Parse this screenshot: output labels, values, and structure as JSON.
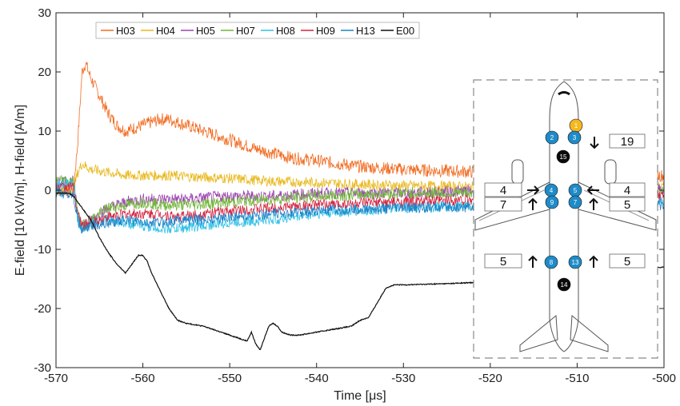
{
  "chart_data": {
    "type": "line",
    "title": "",
    "xlabel": "Time [μs]",
    "ylabel": "E-field [10 kV/m], H-field [A/m]",
    "xlim": [
      -570,
      -500
    ],
    "ylim": [
      -30,
      30
    ],
    "xticks": [
      -570,
      -560,
      -550,
      -540,
      -530,
      -520,
      -510,
      -500
    ],
    "yticks": [
      -30,
      -20,
      -10,
      0,
      10,
      20,
      30
    ],
    "grid": false,
    "legend_position": "top-left-horizontal",
    "series": [
      {
        "name": "H03",
        "color": "#f26b21",
        "noise": 1.1,
        "points": [
          [
            -570,
            0
          ],
          [
            -568,
            0
          ],
          [
            -567.5,
            8
          ],
          [
            -567,
            20
          ],
          [
            -566.6,
            21.5
          ],
          [
            -566,
            19
          ],
          [
            -565,
            16
          ],
          [
            -564,
            13
          ],
          [
            -563,
            11
          ],
          [
            -562,
            10
          ],
          [
            -561,
            10.5
          ],
          [
            -560,
            11
          ],
          [
            -559,
            11.5
          ],
          [
            -558,
            12
          ],
          [
            -557,
            12
          ],
          [
            -556,
            11.5
          ],
          [
            -555,
            11
          ],
          [
            -553,
            10
          ],
          [
            -550,
            8.5
          ],
          [
            -547,
            7
          ],
          [
            -543,
            5.5
          ],
          [
            -540,
            5
          ],
          [
            -535,
            4
          ],
          [
            -530,
            3.5
          ],
          [
            -520,
            3
          ],
          [
            -510,
            2.8
          ],
          [
            -500,
            2.5
          ]
        ]
      },
      {
        "name": "H04",
        "color": "#e8b81c",
        "noise": 0.9,
        "points": [
          [
            -570,
            0
          ],
          [
            -568,
            0
          ],
          [
            -567.5,
            3
          ],
          [
            -567,
            4.5
          ],
          [
            -566,
            3.5
          ],
          [
            -564,
            3
          ],
          [
            -562,
            2.5
          ],
          [
            -560,
            2.5
          ],
          [
            -557,
            2.5
          ],
          [
            -555,
            2.3
          ],
          [
            -550,
            2
          ],
          [
            -545,
            1.5
          ],
          [
            -540,
            1.3
          ],
          [
            -535,
            1
          ],
          [
            -530,
            0.8
          ],
          [
            -520,
            0.5
          ],
          [
            -500,
            0.5
          ]
        ]
      },
      {
        "name": "H05",
        "color": "#9b44b0",
        "noise": 1.0,
        "points": [
          [
            -570,
            1.5
          ],
          [
            -568,
            1.5
          ],
          [
            -567.5,
            -4
          ],
          [
            -567,
            -6
          ],
          [
            -566,
            -5
          ],
          [
            -564,
            -3
          ],
          [
            -562,
            -2
          ],
          [
            -560,
            -1.5
          ],
          [
            -558,
            -1.5
          ],
          [
            -555,
            -1.5
          ],
          [
            -550,
            -1
          ],
          [
            -545,
            -1
          ],
          [
            -540,
            -0.5
          ],
          [
            -530,
            -0.5
          ],
          [
            -520,
            0
          ],
          [
            -500,
            0
          ]
        ]
      },
      {
        "name": "H07",
        "color": "#73b53a",
        "noise": 1.0,
        "points": [
          [
            -570,
            1.5
          ],
          [
            -568,
            1.5
          ],
          [
            -567.5,
            -4
          ],
          [
            -567,
            -6
          ],
          [
            -566,
            -5
          ],
          [
            -564,
            -3
          ],
          [
            -562,
            -2.5
          ],
          [
            -560,
            -2
          ],
          [
            -558,
            -2.5
          ],
          [
            -555,
            -2.5
          ],
          [
            -550,
            -2
          ],
          [
            -545,
            -1.5
          ],
          [
            -540,
            -1
          ],
          [
            -530,
            -0.5
          ],
          [
            -520,
            -0.5
          ],
          [
            -500,
            0
          ]
        ]
      },
      {
        "name": "H08",
        "color": "#2fc0e6",
        "noise": 0.9,
        "points": [
          [
            -570,
            1
          ],
          [
            -568,
            1
          ],
          [
            -567.5,
            -5
          ],
          [
            -567,
            -6.5
          ],
          [
            -566,
            -5.5
          ],
          [
            -564,
            -5
          ],
          [
            -562,
            -5.5
          ],
          [
            -560,
            -6
          ],
          [
            -558,
            -6.5
          ],
          [
            -556,
            -6.5
          ],
          [
            -553,
            -6
          ],
          [
            -550,
            -5.5
          ],
          [
            -545,
            -5
          ],
          [
            -540,
            -4
          ],
          [
            -535,
            -3.5
          ],
          [
            -530,
            -3
          ],
          [
            -520,
            -2.5
          ],
          [
            -500,
            -2
          ]
        ]
      },
      {
        "name": "H09",
        "color": "#d6223f",
        "noise": 0.9,
        "points": [
          [
            -570,
            0.5
          ],
          [
            -568,
            0.5
          ],
          [
            -567.5,
            -4
          ],
          [
            -567,
            -6
          ],
          [
            -566,
            -5.5
          ],
          [
            -564,
            -4.5
          ],
          [
            -562,
            -4
          ],
          [
            -560,
            -4
          ],
          [
            -558,
            -4
          ],
          [
            -556,
            -4.5
          ],
          [
            -553,
            -4
          ],
          [
            -550,
            -3.5
          ],
          [
            -545,
            -3
          ],
          [
            -540,
            -2.5
          ],
          [
            -530,
            -2
          ],
          [
            -520,
            -1.5
          ],
          [
            -500,
            -1
          ]
        ]
      },
      {
        "name": "H13",
        "color": "#1f82c7",
        "noise": 0.9,
        "points": [
          [
            -570,
            -0.5
          ],
          [
            -568,
            -0.5
          ],
          [
            -567.5,
            -5
          ],
          [
            -567,
            -7
          ],
          [
            -566,
            -6
          ],
          [
            -564,
            -5.5
          ],
          [
            -562,
            -5
          ],
          [
            -560,
            -5.5
          ],
          [
            -558,
            -5.5
          ],
          [
            -556,
            -5
          ],
          [
            -553,
            -5
          ],
          [
            -550,
            -4.5
          ],
          [
            -545,
            -4
          ],
          [
            -540,
            -3.5
          ],
          [
            -530,
            -3
          ],
          [
            -520,
            -2.8
          ],
          [
            -500,
            -2.5
          ]
        ]
      },
      {
        "name": "E00",
        "color": "#111111",
        "noise": 0.08,
        "points": [
          [
            -570,
            -0.5
          ],
          [
            -568.5,
            -0.5
          ],
          [
            -568,
            -1
          ],
          [
            -567,
            -3
          ],
          [
            -566,
            -5
          ],
          [
            -565,
            -8
          ],
          [
            -564,
            -10.5
          ],
          [
            -563,
            -12.5
          ],
          [
            -562,
            -14
          ],
          [
            -561,
            -12
          ],
          [
            -560.5,
            -11
          ],
          [
            -560,
            -11
          ],
          [
            -559.5,
            -12
          ],
          [
            -559,
            -14
          ],
          [
            -558,
            -17
          ],
          [
            -557,
            -20
          ],
          [
            -556,
            -22
          ],
          [
            -555,
            -22.5
          ],
          [
            -553,
            -23
          ],
          [
            -551,
            -24
          ],
          [
            -549,
            -25
          ],
          [
            -548,
            -25.5
          ],
          [
            -547.5,
            -24
          ],
          [
            -547,
            -26
          ],
          [
            -546.5,
            -27
          ],
          [
            -546,
            -25
          ],
          [
            -545.5,
            -23
          ],
          [
            -545,
            -22.5
          ],
          [
            -544.5,
            -23
          ],
          [
            -544,
            -24
          ],
          [
            -543,
            -24.5
          ],
          [
            -542,
            -24.5
          ],
          [
            -540,
            -24
          ],
          [
            -538,
            -23.5
          ],
          [
            -536,
            -23
          ],
          [
            -535,
            -22
          ],
          [
            -534,
            -21.5
          ],
          [
            -533,
            -19
          ],
          [
            -532,
            -16.5
          ],
          [
            -531,
            -16
          ],
          [
            -530,
            -16
          ],
          [
            -525,
            -15.8
          ],
          [
            -520,
            -15.5
          ],
          [
            -515,
            -15
          ],
          [
            -510,
            -14
          ],
          [
            -505,
            -13.5
          ],
          [
            -500,
            -13
          ]
        ]
      }
    ],
    "inset": {
      "sensors": [
        {
          "id": "1",
          "color": "#f5b820"
        },
        {
          "id": "2",
          "color": "#1f8bc8"
        },
        {
          "id": "3",
          "color": "#1f8bc8"
        },
        {
          "id": "15",
          "color": "#0a0a0a"
        },
        {
          "id": "4",
          "color": "#1f8bc8"
        },
        {
          "id": "5",
          "color": "#1f8bc8"
        },
        {
          "id": "9",
          "color": "#1f8bc8"
        },
        {
          "id": "7",
          "color": "#1f8bc8"
        },
        {
          "id": "8",
          "color": "#1f8bc8"
        },
        {
          "id": "13",
          "color": "#1f8bc8"
        },
        {
          "id": "14",
          "color": "#0a0a0a"
        }
      ],
      "values": [
        {
          "text": "19",
          "arrow": "down"
        },
        {
          "text": "4",
          "arrow": "right"
        },
        {
          "text": "4",
          "arrow": "left"
        },
        {
          "text": "7",
          "arrow": "up"
        },
        {
          "text": "5",
          "arrow": "up"
        },
        {
          "text": "5",
          "arrow": "up"
        },
        {
          "text": "5",
          "arrow": "up"
        }
      ]
    }
  }
}
